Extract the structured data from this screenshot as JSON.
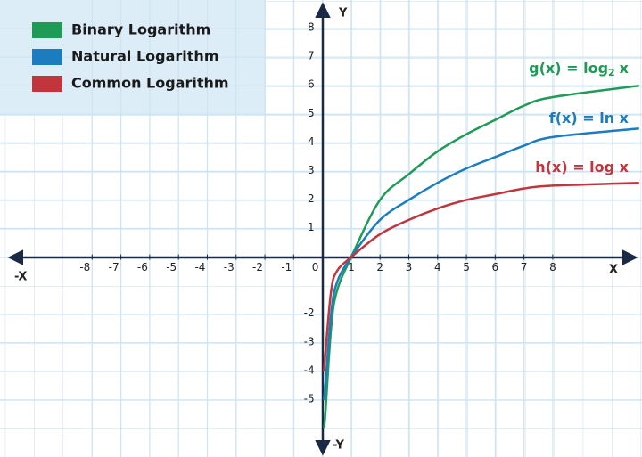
{
  "chart_data": {
    "type": "line",
    "x": [
      0.05,
      0.1,
      0.3,
      0.5,
      1,
      2,
      3,
      4,
      5,
      6,
      7,
      8,
      11
    ],
    "series": [
      {
        "name": "Binary Logarithm",
        "color": "#1f9a57",
        "values": [
          -6,
          -5.5,
          -2.5,
          -1.2,
          0,
          2,
          2.9,
          3.7,
          4.3,
          4.8,
          5.3,
          5.6,
          6.0
        ]
      },
      {
        "name": "Natural Logarithm",
        "color": "#1b7dc0",
        "values": [
          -5,
          -4.5,
          -2,
          -0.9,
          0,
          1.3,
          2,
          2.6,
          3.1,
          3.5,
          3.9,
          4.2,
          4.5
        ]
      },
      {
        "name": "Common Logarithm",
        "color": "#c1363d",
        "values": [
          -4,
          -3.4,
          -1.2,
          -0.5,
          0,
          0.8,
          1.3,
          1.7,
          2,
          2.2,
          2.4,
          2.5,
          2.6
        ]
      }
    ],
    "annotations": [
      {
        "text": "g(x) = log",
        "sub": "2",
        "suffix": "x"
      },
      {
        "text": "f(x) = ln x"
      },
      {
        "text": "h(x) = log x"
      }
    ],
    "x_label": "X",
    "x_neg_label": "-X",
    "y_label": "Y",
    "y_neg_label": "-Y",
    "xlim": [
      -11.2,
      11.1
    ],
    "ylim": [
      -7,
      9
    ],
    "xticks": [
      -8,
      -7,
      -6,
      -5,
      -4,
      -3,
      -2,
      -1,
      0,
      1,
      2,
      3,
      4,
      5,
      6,
      7,
      8
    ],
    "yticks": [
      -5,
      -4,
      -3,
      -2,
      1,
      2,
      3,
      4,
      5,
      6,
      7,
      8
    ],
    "grid": true
  }
}
